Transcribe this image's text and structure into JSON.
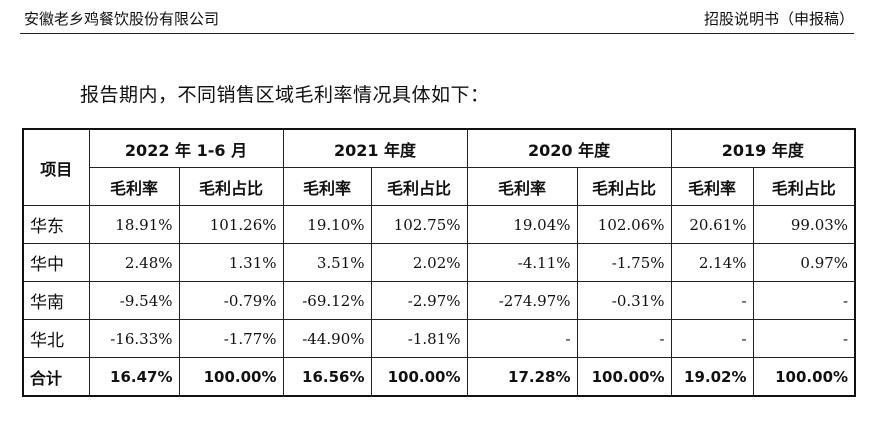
{
  "header": {
    "company": "安徽老乡鸡餐饮股份有限公司",
    "doc": "招股说明书（申报稿）"
  },
  "intro": "报告期内，不同销售区域毛利率情况具体如下：",
  "table": {
    "item_header": "项目",
    "periods": [
      "2022 年 1-6 月",
      "2021 年度",
      "2020 年度",
      "2019 年度"
    ],
    "sub_headers": [
      "毛利率",
      "毛利占比"
    ],
    "rows": [
      {
        "region": "华东",
        "values": [
          "18.91%",
          "101.26%",
          "19.10%",
          "102.75%",
          "19.04%",
          "102.06%",
          "20.61%",
          "99.03%"
        ]
      },
      {
        "region": "华中",
        "values": [
          "2.48%",
          "1.31%",
          "3.51%",
          "2.02%",
          "-4.11%",
          "-1.75%",
          "2.14%",
          "0.97%"
        ]
      },
      {
        "region": "华南",
        "values": [
          "-9.54%",
          "-0.79%",
          "-69.12%",
          "-2.97%",
          "-274.97%",
          "-0.31%",
          "-",
          "-"
        ]
      },
      {
        "region": "华北",
        "values": [
          "-16.33%",
          "-1.77%",
          "-44.90%",
          "-1.81%",
          "-",
          "-",
          "-",
          "-"
        ]
      }
    ],
    "total": {
      "region": "合计",
      "values": [
        "16.47%",
        "100.00%",
        "16.56%",
        "100.00%",
        "17.28%",
        "100.00%",
        "19.02%",
        "100.00%"
      ]
    }
  }
}
